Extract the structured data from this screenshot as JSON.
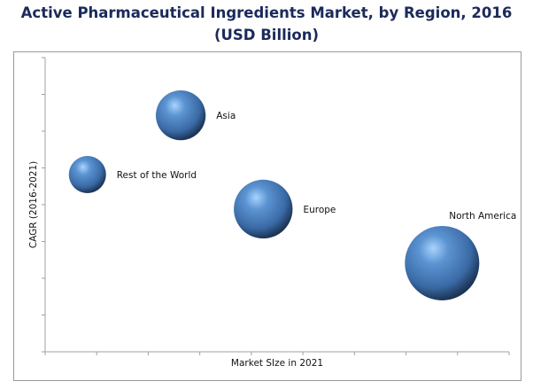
{
  "chart_data": {
    "type": "bubble",
    "title": "Active Pharmaceutical Ingredients Market, by Region, 2016 (USD Billion)",
    "xlabel": "Market SIze in 2021",
    "ylabel": "CAGR (2016-2021)",
    "xlim": [
      0,
      9
    ],
    "ylim": [
      0,
      8
    ],
    "x_ticks": 9,
    "y_ticks": 8,
    "tick_labels_shown": false,
    "grid": false,
    "legend": "none",
    "bubble_color": "#3f74b4",
    "points": [
      {
        "label": "Asia",
        "x": 2.63,
        "y": 6.43,
        "size": 0.67,
        "label_pos": "right"
      },
      {
        "label": "Rest of the World",
        "x": 0.82,
        "y": 4.82,
        "size": 0.5,
        "label_pos": "right"
      },
      {
        "label": "Europe",
        "x": 4.23,
        "y": 3.88,
        "size": 0.79,
        "label_pos": "right"
      },
      {
        "label": "North America",
        "x": 7.7,
        "y": 2.41,
        "size": 1.0,
        "label_pos": "above"
      }
    ]
  }
}
